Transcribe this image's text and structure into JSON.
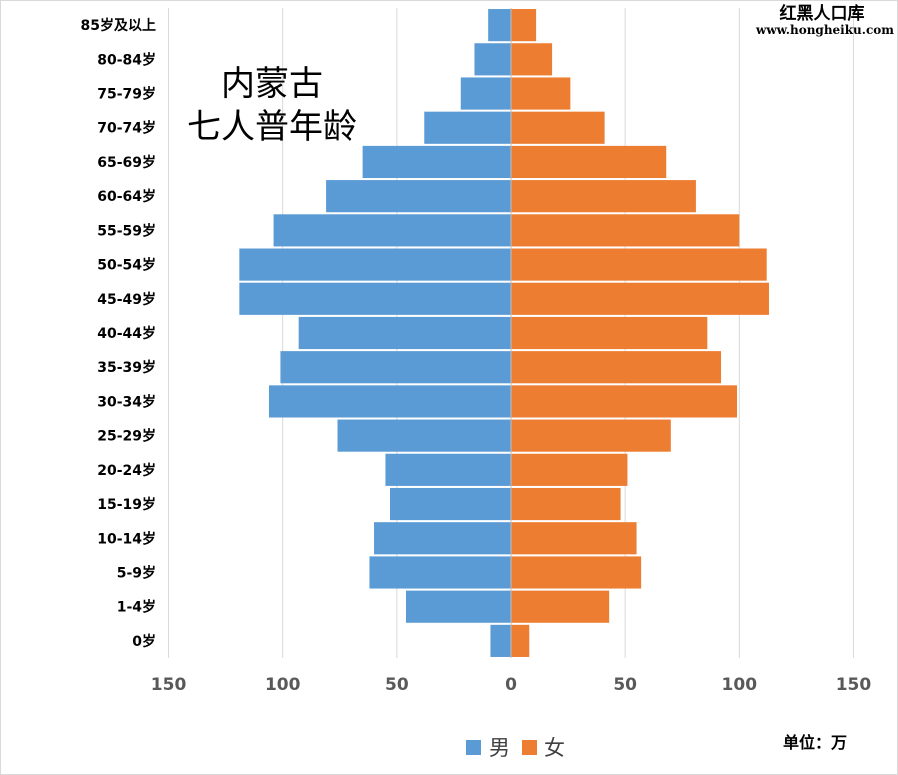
{
  "chart_data": {
    "type": "bar",
    "orientation": "horizontal",
    "layout": "population-pyramid",
    "title_lines": [
      "内蒙古",
      "七人普年龄"
    ],
    "categories": [
      "0岁",
      "1-4岁",
      "5-9岁",
      "10-14岁",
      "15-19岁",
      "20-24岁",
      "25-29岁",
      "30-34岁",
      "35-39岁",
      "40-44岁",
      "45-49岁",
      "50-54岁",
      "55-59岁",
      "60-64岁",
      "65-69岁",
      "70-74岁",
      "75-79岁",
      "80-84岁",
      "85岁及以上"
    ],
    "series": [
      {
        "name": "男",
        "color": "#5B9BD5",
        "side": "left",
        "values": [
          9,
          46,
          62,
          60,
          53,
          55,
          76,
          106,
          101,
          93,
          119,
          119,
          104,
          81,
          65,
          38,
          22,
          16,
          10
        ]
      },
      {
        "name": "女",
        "color": "#ED7D31",
        "side": "right",
        "values": [
          8,
          43,
          57,
          55,
          48,
          51,
          70,
          99,
          92,
          86,
          113,
          112,
          100,
          81,
          68,
          41,
          26,
          18,
          11
        ]
      }
    ],
    "x_tick_labels": [
      "150",
      "100",
      "50",
      "0",
      "50",
      "100",
      "150"
    ],
    "x_tick_values": [
      -150,
      -100,
      -50,
      0,
      50,
      100,
      150
    ],
    "xlim": [
      -150,
      150
    ],
    "grid": "vertical",
    "legend_position": "bottom",
    "unit_label": "单位：万",
    "watermark": {
      "line1": "红黑人口库",
      "line2": "www.hongheiku.com"
    }
  }
}
